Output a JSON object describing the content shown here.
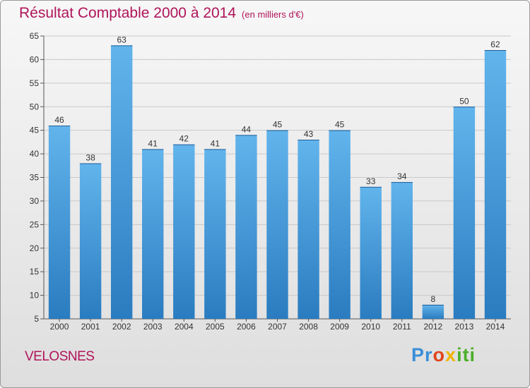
{
  "header": {
    "title": "Résultat Comptable 2000 à 2014",
    "subtitle": "(en milliers d'€)"
  },
  "footer": {
    "location": "VELOSNES",
    "logo_parts": [
      "Pr",
      "o",
      "x",
      "iti"
    ]
  },
  "colors": {
    "accent": "#b0145a",
    "bar_top": "#62b4ec",
    "bar_bottom": "#2a7cc0",
    "grid": "#c8c8c8"
  },
  "chart_data": {
    "type": "bar",
    "title": "Résultat Comptable 2000 à 2014",
    "subtitle": "(en milliers d'€)",
    "xlabel": "",
    "ylabel": "",
    "categories": [
      "2000",
      "2001",
      "2002",
      "2003",
      "2004",
      "2005",
      "2006",
      "2007",
      "2008",
      "2009",
      "2010",
      "2011",
      "2012",
      "2013",
      "2014"
    ],
    "values": [
      46,
      38,
      63,
      41,
      42,
      41,
      44,
      45,
      43,
      45,
      33,
      34,
      8,
      50,
      62
    ],
    "ylim": [
      5,
      65
    ],
    "yticks": [
      5,
      10,
      15,
      20,
      25,
      30,
      35,
      40,
      45,
      50,
      55,
      60,
      65
    ],
    "grid": true,
    "legend": "none"
  }
}
